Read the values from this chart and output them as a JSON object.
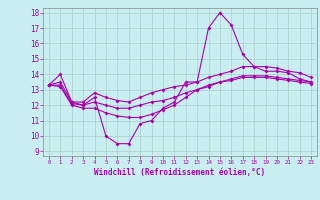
{
  "xlabel": "Windchill (Refroidissement éolien,°C)",
  "xlim": [
    -0.5,
    23.5
  ],
  "ylim": [
    8.7,
    18.3
  ],
  "yticks": [
    9,
    10,
    11,
    12,
    13,
    14,
    15,
    16,
    17,
    18
  ],
  "xticks": [
    0,
    1,
    2,
    3,
    4,
    5,
    6,
    7,
    8,
    9,
    10,
    11,
    12,
    13,
    14,
    15,
    16,
    17,
    18,
    19,
    20,
    21,
    22,
    23
  ],
  "bg_color": "#c8eef0",
  "line_color": "#aa00aa",
  "grid_color": "#aacccc",
  "line1_x": [
    0,
    1,
    2,
    3,
    4,
    5,
    6,
    7,
    8,
    9,
    10,
    11,
    12,
    13,
    14,
    15,
    16,
    17,
    18,
    19,
    20,
    21,
    22,
    23
  ],
  "line1_y": [
    13.3,
    14.0,
    12.2,
    12.0,
    12.5,
    10.0,
    9.5,
    9.5,
    10.8,
    11.0,
    11.8,
    12.2,
    13.5,
    13.5,
    17.0,
    18.0,
    17.2,
    15.3,
    14.5,
    14.2,
    14.2,
    14.1,
    13.7,
    13.5
  ],
  "line2_x": [
    0,
    1,
    2,
    3,
    4,
    5,
    6,
    7,
    8,
    9,
    10,
    11,
    12,
    13,
    14,
    15,
    16,
    17,
    18,
    19,
    20,
    21,
    22,
    23
  ],
  "line2_y": [
    13.3,
    13.5,
    12.2,
    12.2,
    12.8,
    12.5,
    12.3,
    12.2,
    12.5,
    12.8,
    13.0,
    13.2,
    13.3,
    13.5,
    13.8,
    14.0,
    14.2,
    14.5,
    14.5,
    14.5,
    14.4,
    14.2,
    14.1,
    13.8
  ],
  "line3_x": [
    0,
    1,
    2,
    3,
    4,
    5,
    6,
    7,
    8,
    9,
    10,
    11,
    12,
    13,
    14,
    15,
    16,
    17,
    18,
    19,
    20,
    21,
    22,
    23
  ],
  "line3_y": [
    13.3,
    13.3,
    12.1,
    12.0,
    12.2,
    12.0,
    11.8,
    11.8,
    12.0,
    12.2,
    12.3,
    12.5,
    12.8,
    13.0,
    13.3,
    13.5,
    13.6,
    13.8,
    13.8,
    13.8,
    13.7,
    13.6,
    13.5,
    13.4
  ],
  "line4_x": [
    0,
    1,
    2,
    3,
    4,
    5,
    6,
    7,
    8,
    9,
    10,
    11,
    12,
    13,
    14,
    15,
    16,
    17,
    18,
    19,
    20,
    21,
    22,
    23
  ],
  "line4_y": [
    13.3,
    13.2,
    12.0,
    11.8,
    11.8,
    11.5,
    11.3,
    11.2,
    11.2,
    11.4,
    11.7,
    12.0,
    12.5,
    13.0,
    13.2,
    13.5,
    13.7,
    13.9,
    13.9,
    13.9,
    13.8,
    13.7,
    13.6,
    13.5
  ]
}
